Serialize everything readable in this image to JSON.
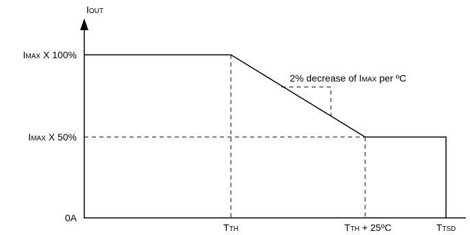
{
  "y_axis": {
    "label": {
      "main": "I",
      "sub": "OUT"
    },
    "ticks": [
      {
        "main": "I",
        "sub": "MAX",
        "rest": " X 100%"
      },
      {
        "main": "I",
        "sub": "MAX",
        "rest": " X 50%"
      },
      {
        "main": "0A",
        "sub": "",
        "rest": ""
      }
    ]
  },
  "x_axis": {
    "ticks": [
      {
        "main": "T",
        "sub": "TH",
        "rest": ""
      },
      {
        "main": "T",
        "sub": "TH",
        "rest": " + 25ºC"
      },
      {
        "main": "T",
        "sub": "TSD",
        "rest": ""
      }
    ]
  },
  "annotation": {
    "pre": "2% decrease of I",
    "sub": "MAX",
    "post": " per ºC"
  },
  "colors": {
    "line": "#000000",
    "background": "#ffffff"
  }
}
